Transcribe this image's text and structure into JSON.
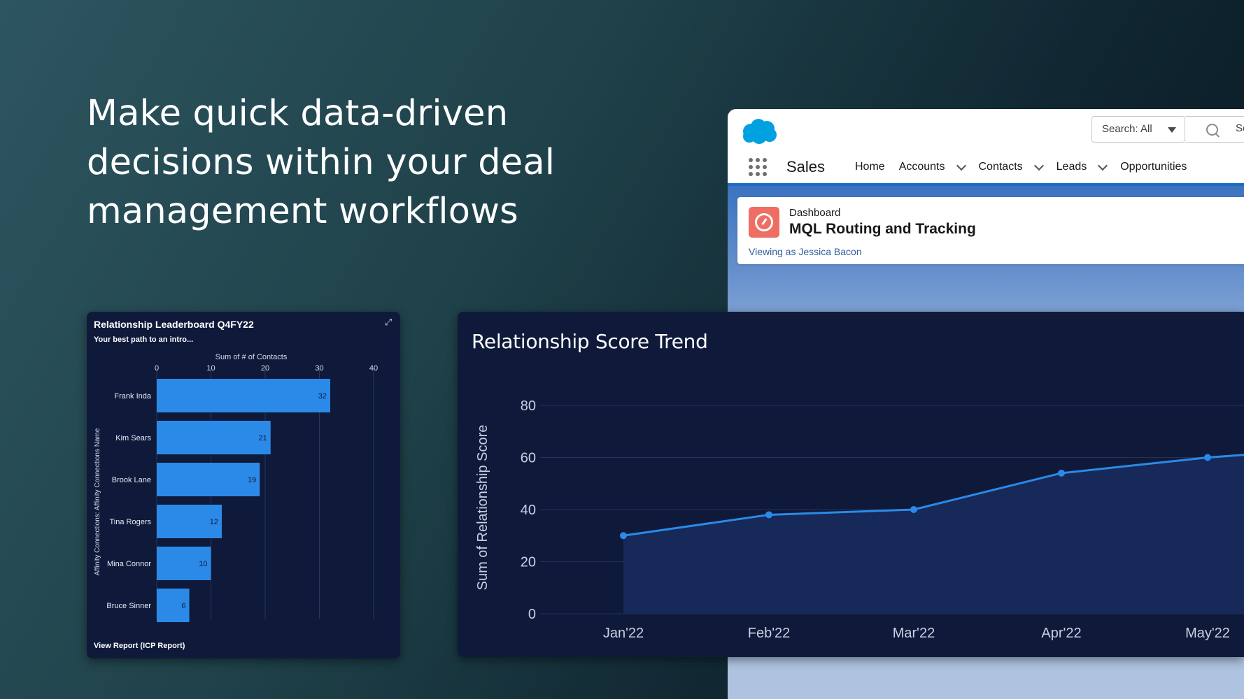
{
  "headline": {
    "lines": [
      "Make quick data-driven",
      "decisions within your deal",
      "management workflows"
    ]
  },
  "salesforce": {
    "search_scope": "Search: All",
    "search_placeholder": "Se",
    "app_name": "Sales",
    "nav": [
      {
        "label": "Home",
        "dropdown": false
      },
      {
        "label": "Accounts",
        "dropdown": true
      },
      {
        "label": "Contacts",
        "dropdown": true
      },
      {
        "label": "Leads",
        "dropdown": true
      },
      {
        "label": "Opportunities",
        "dropdown": false
      }
    ],
    "dashboard_kicker": "Dashboard",
    "dashboard_title": "MQL Routing and Tracking",
    "viewing_as": "Viewing as Jessica Bacon",
    "colors": {
      "brand": "#00a1e0",
      "nav_bar": "#1b6ac9",
      "dashboard_icon": "#ef6e64"
    }
  },
  "leaderboard": {
    "title": "Relationship Leaderboard Q4FY22",
    "subtitle": "Your best path to an intro...",
    "footer_link": "View Report (ICP Report)"
  },
  "trend": {
    "title": "Relationship Score Trend"
  },
  "chart_data": [
    {
      "type": "bar",
      "orientation": "horizontal",
      "title": "Relationship Leaderboard Q4FY22",
      "subtitle": "Your best path to an intro...",
      "xlabel": "Sum of # of Contacts",
      "ylabel": "Affinity Connections: Affinity Connections Name",
      "xlim": [
        0,
        40
      ],
      "xticks": [
        0,
        10,
        20,
        30,
        40
      ],
      "categories": [
        "Frank Inda",
        "Kim Sears",
        "Brook Lane",
        "Tina Rogers",
        "Mina Connor",
        "Bruce Sinner"
      ],
      "values": [
        32,
        21,
        19,
        12,
        10,
        6
      ],
      "grid": true,
      "bar_color": "#2b8ae8"
    },
    {
      "type": "area",
      "title": "Relationship Score Trend",
      "xlabel": "",
      "ylabel": "Sum of Relationship Score",
      "ylim": [
        0,
        80
      ],
      "yticks": [
        0,
        20,
        40,
        60,
        80
      ],
      "categories": [
        "Jan'22",
        "Feb'22",
        "Mar'22",
        "Apr'22",
        "May'22"
      ],
      "values": [
        30,
        38,
        40,
        54,
        60
      ],
      "grid": true,
      "line_color": "#2b8ae8"
    }
  ]
}
